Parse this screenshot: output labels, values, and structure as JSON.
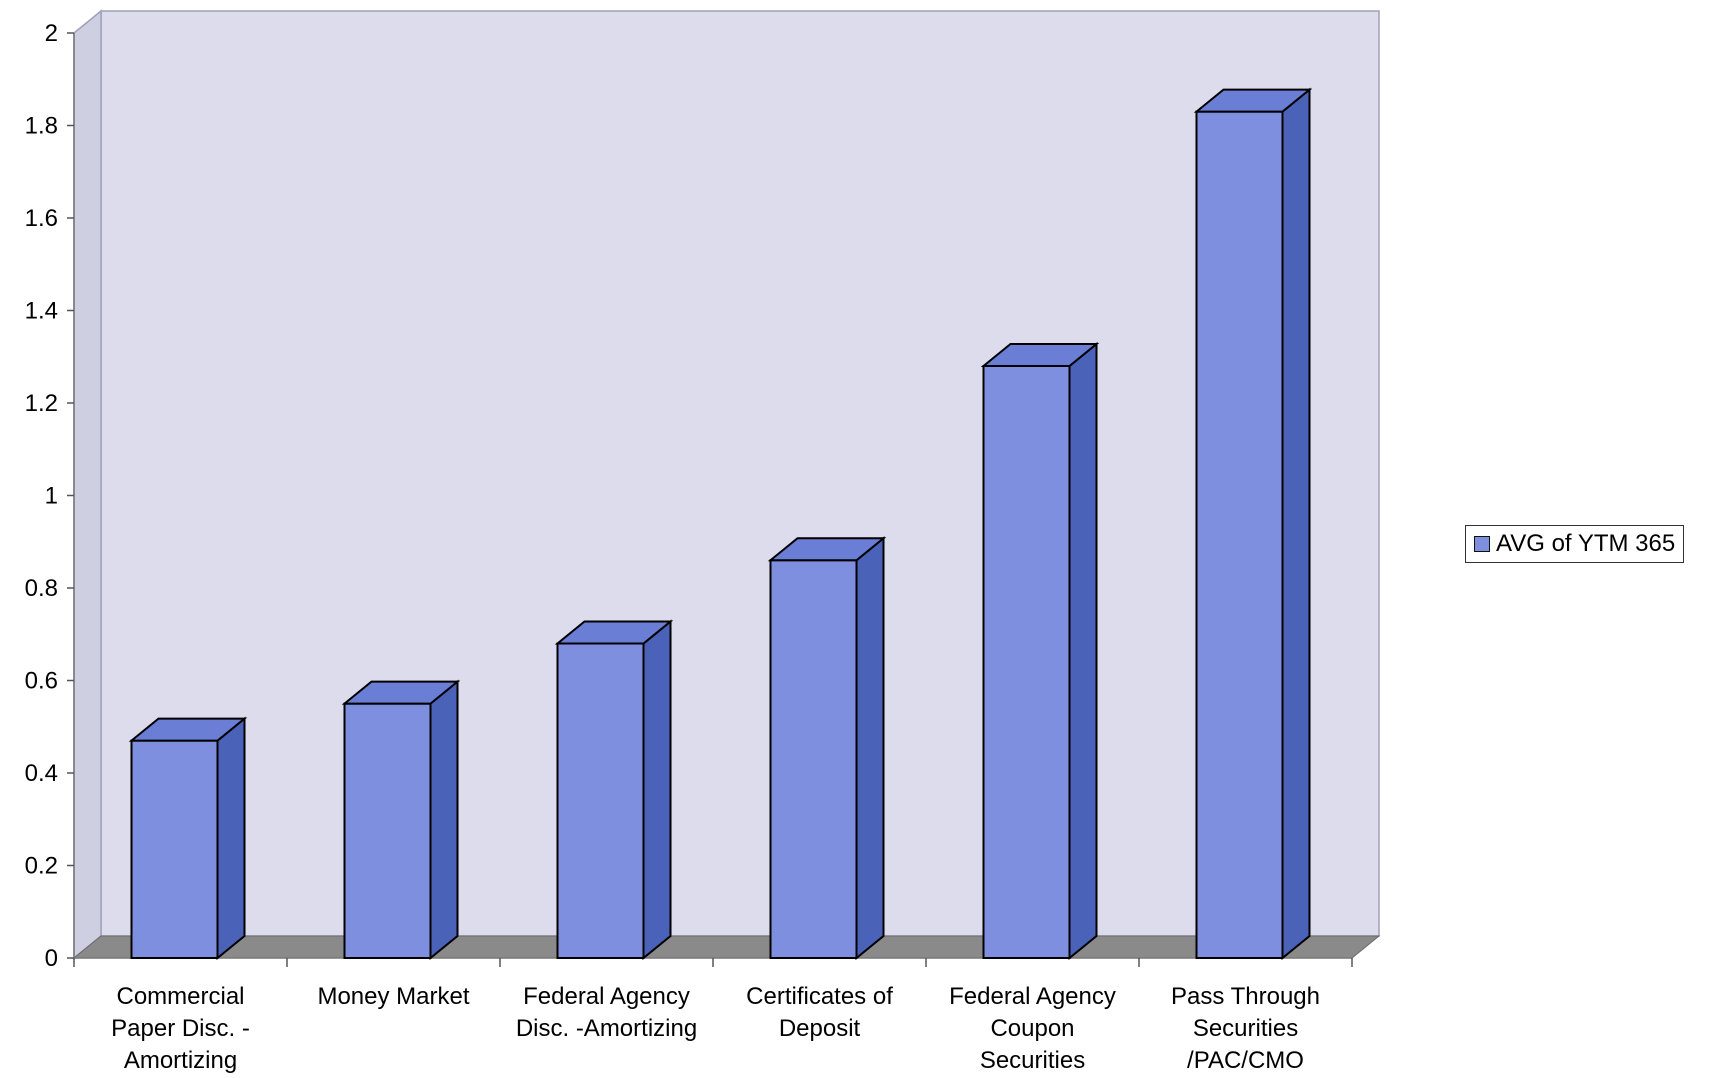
{
  "chart_data": {
    "type": "bar",
    "title": "",
    "xlabel": "",
    "ylabel": "",
    "categories": [
      [
        "Commercial",
        "Paper Disc. -",
        "Amortizing"
      ],
      [
        "Money Market"
      ],
      [
        "Federal Agency",
        "Disc. -Amortizing"
      ],
      [
        "Certificates of",
        "Deposit"
      ],
      [
        "Federal Agency",
        "Coupon",
        "Securities"
      ],
      [
        "Pass Through",
        "Securities",
        "/PAC/CMO"
      ]
    ],
    "series": [
      {
        "name": "AVG of YTM 365",
        "values": [
          0.47,
          0.55,
          0.68,
          0.86,
          1.28,
          1.83
        ]
      }
    ],
    "ylim": [
      0,
      2
    ],
    "yticks": [
      "0",
      "0.2",
      "0.4",
      "0.6",
      "0.8",
      "1",
      "1.2",
      "1.4",
      "1.6",
      "1.8",
      "2"
    ],
    "grid": false,
    "legend_position": "right",
    "colors": {
      "bar_front": "#7f8fe0",
      "bar_top": "#6a7ed6",
      "bar_side": "#4a62b8",
      "wall": "#dcdcec",
      "floor": "#8a8a8a"
    }
  }
}
